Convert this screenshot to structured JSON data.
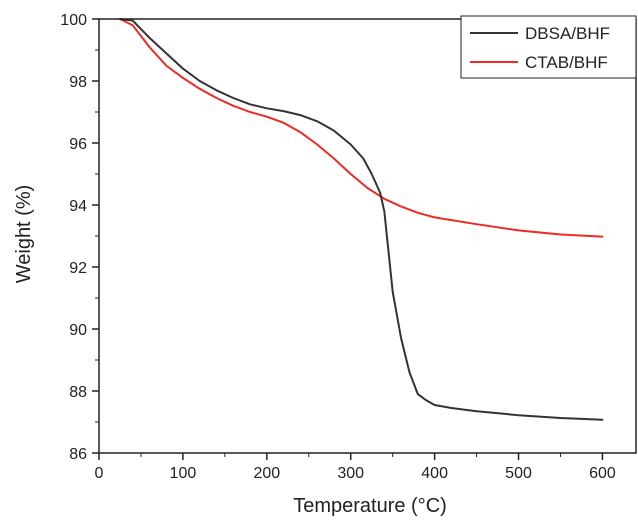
{
  "chart_data": {
    "type": "line",
    "title": "",
    "xlabel": "Temperature (°C)",
    "ylabel": "Weight (%)",
    "xlim": [
      0,
      640
    ],
    "ylim": [
      86,
      100
    ],
    "xticks": [
      "0",
      "100",
      "200",
      "300",
      "400",
      "500",
      "600"
    ],
    "yticks": [
      "86",
      "88",
      "90",
      "92",
      "94",
      "96",
      "98",
      "100"
    ],
    "grid": false,
    "legend_position": "top-right",
    "series": [
      {
        "name": "DBSA/BHF",
        "color": "#333333",
        "x": [
          25,
          40,
          60,
          80,
          100,
          120,
          140,
          160,
          180,
          200,
          220,
          240,
          260,
          280,
          300,
          315,
          325,
          335,
          340,
          345,
          350,
          360,
          370,
          380,
          390,
          400,
          420,
          450,
          500,
          550,
          600
        ],
        "y": [
          100.0,
          99.95,
          99.4,
          98.9,
          98.4,
          98.0,
          97.7,
          97.45,
          97.25,
          97.12,
          97.03,
          96.9,
          96.7,
          96.4,
          95.95,
          95.5,
          95.0,
          94.4,
          93.8,
          92.5,
          91.2,
          89.7,
          88.6,
          87.9,
          87.7,
          87.55,
          87.45,
          87.35,
          87.22,
          87.13,
          87.07
        ]
      },
      {
        "name": "CTAB/BHF",
        "color": "#ee2a24",
        "x": [
          25,
          40,
          60,
          80,
          100,
          120,
          140,
          160,
          180,
          200,
          220,
          240,
          260,
          280,
          300,
          320,
          340,
          360,
          380,
          400,
          450,
          500,
          550,
          600
        ],
        "y": [
          100.0,
          99.8,
          99.1,
          98.5,
          98.1,
          97.75,
          97.45,
          97.2,
          97.0,
          96.85,
          96.65,
          96.35,
          95.95,
          95.5,
          95.0,
          94.55,
          94.2,
          93.95,
          93.75,
          93.6,
          93.38,
          93.18,
          93.05,
          92.98
        ]
      }
    ]
  }
}
